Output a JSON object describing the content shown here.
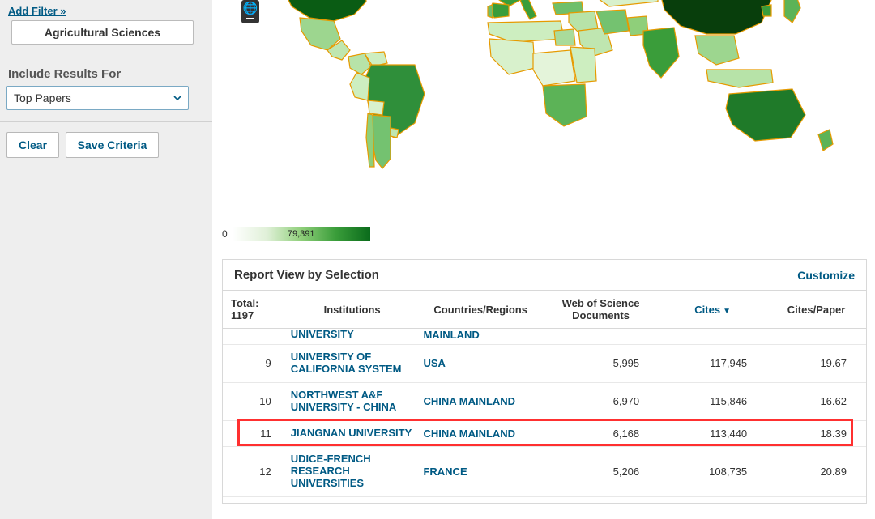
{
  "sidebar": {
    "add_filter_label": "Add Filter »",
    "active_filter": "Agricultural Sciences",
    "include_title": "Include Results For",
    "include_select_value": "Top Papers",
    "clear_label": "Clear",
    "save_label": "Save Criteria"
  },
  "legend": {
    "min": "0",
    "max": "79,391"
  },
  "map": {
    "land_stroke": "#e69a00",
    "sea": "#ffffff",
    "countries": {
      "usa": {
        "fill": "#0a5c14"
      },
      "canada": {
        "fill": "#7ec77a"
      },
      "mexico": {
        "fill": "#9dd68f"
      },
      "centralam": {
        "fill": "#bfe6b0"
      },
      "colombia": {
        "fill": "#b7e3a8"
      },
      "venezuela": {
        "fill": "#cdeec0"
      },
      "peru": {
        "fill": "#cdeec0"
      },
      "bolivia": {
        "fill": "#d8f1cc"
      },
      "brazil": {
        "fill": "#2f8f3a"
      },
      "argentina": {
        "fill": "#74c270"
      },
      "chile": {
        "fill": "#8fcf7a"
      },
      "uruguay": {
        "fill": "#bfe6b0"
      },
      "greenland": {
        "fill": "#eef7e6"
      },
      "uk": {
        "fill": "#2f8f3a"
      },
      "france": {
        "fill": "#3a9d3a"
      },
      "spain": {
        "fill": "#3a9d3a"
      },
      "portugal": {
        "fill": "#6fbf6b"
      },
      "germany": {
        "fill": "#3a9d3a"
      },
      "italy": {
        "fill": "#3a9d3a"
      },
      "poland": {
        "fill": "#6fbf6b"
      },
      "scand": {
        "fill": "#8fcf7a"
      },
      "eeur": {
        "fill": "#9dd68f"
      },
      "turkey": {
        "fill": "#6fbf6b"
      },
      "russia": {
        "fill": "#a9db9b"
      },
      "mideast": {
        "fill": "#b7e3a8"
      },
      "saudi": {
        "fill": "#bfe6b0"
      },
      "iran": {
        "fill": "#74c270"
      },
      "nafr": {
        "fill": "#cdeec0"
      },
      "egypt": {
        "fill": "#a9db9b"
      },
      "wafr": {
        "fill": "#d8f1cc"
      },
      "cafr": {
        "fill": "#e4f4da"
      },
      "eafr": {
        "fill": "#cdeec0"
      },
      "safr": {
        "fill": "#5cb357"
      },
      "india": {
        "fill": "#3a9d3a"
      },
      "pakistan": {
        "fill": "#8fcf7a"
      },
      "casia": {
        "fill": "#d8f1cc"
      },
      "china": {
        "fill": "#083e0c"
      },
      "sea": {
        "fill": "#9dd68f"
      },
      "indonesia": {
        "fill": "#b7e3a8"
      },
      "japan": {
        "fill": "#5cb357"
      },
      "korea": {
        "fill": "#3a9d3a"
      },
      "australia": {
        "fill": "#1f7a29"
      },
      "nz": {
        "fill": "#5cb357"
      }
    }
  },
  "report": {
    "title": "Report View by Selection",
    "customize": "Customize",
    "columns": {
      "total_label": "Total:",
      "total_value": "1197",
      "institutions": "Institutions",
      "countries": "Countries/Regions",
      "docs": "Web of Science Documents",
      "cites": "Cites",
      "cites_per_paper": "Cites/Paper"
    },
    "sorted_by": "cites",
    "partial_row": {
      "institution_tail": "UNIVERSITY",
      "country_tail": "MAINLAND"
    },
    "rows": [
      {
        "rank": "9",
        "institution": "UNIVERSITY OF CALIFORNIA SYSTEM",
        "country": "USA",
        "docs": "5,995",
        "cites": "117,945",
        "cp": "19.67",
        "highlight": false
      },
      {
        "rank": "10",
        "institution": "NORTHWEST A&F UNIVERSITY - CHINA",
        "country": "CHINA MAINLAND",
        "docs": "6,970",
        "cites": "115,846",
        "cp": "16.62",
        "highlight": false
      },
      {
        "rank": "11",
        "institution": "JIANGNAN UNIVERSITY",
        "country": "CHINA MAINLAND",
        "docs": "6,168",
        "cites": "113,440",
        "cp": "18.39",
        "highlight": true
      },
      {
        "rank": "12",
        "institution": "UDICE-FRENCH RESEARCH UNIVERSITIES",
        "country": "FRANCE",
        "docs": "5,206",
        "cites": "108,735",
        "cp": "20.89",
        "highlight": false
      }
    ]
  }
}
